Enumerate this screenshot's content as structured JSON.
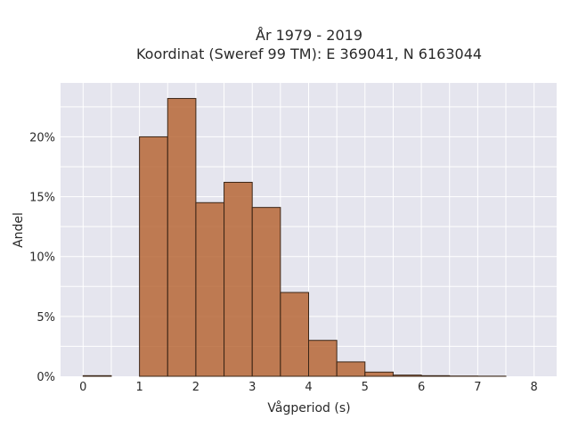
{
  "chart_data": {
    "type": "bar",
    "title_line1": "År 1979 - 2019",
    "title_line2": "Koordinat (Sweref 99 TM): E 369041, N 6163044",
    "xlabel": "Vågperiod (s)",
    "ylabel": "Andel",
    "xlim": [
      -0.4,
      8.4
    ],
    "ylim": [
      0,
      24.5
    ],
    "x_ticks": [
      0,
      1,
      2,
      3,
      4,
      5,
      6,
      7,
      8
    ],
    "y_ticks": [
      0,
      5,
      10,
      15,
      20
    ],
    "y_tick_labels": [
      "0%",
      "5%",
      "10%",
      "15%",
      "20%"
    ],
    "bin_width": 0.5,
    "bins": [
      {
        "start": 0.0,
        "value": 0.05
      },
      {
        "start": 0.5,
        "value": 0.0
      },
      {
        "start": 1.0,
        "value": 20.0
      },
      {
        "start": 1.5,
        "value": 23.2
      },
      {
        "start": 2.0,
        "value": 14.5
      },
      {
        "start": 2.5,
        "value": 16.2
      },
      {
        "start": 3.0,
        "value": 14.1
      },
      {
        "start": 3.5,
        "value": 7.0
      },
      {
        "start": 4.0,
        "value": 3.0
      },
      {
        "start": 4.5,
        "value": 1.2
      },
      {
        "start": 5.0,
        "value": 0.35
      },
      {
        "start": 5.5,
        "value": 0.1
      },
      {
        "start": 6.0,
        "value": 0.05
      },
      {
        "start": 6.5,
        "value": 0.02
      },
      {
        "start": 7.0,
        "value": 0.01
      }
    ],
    "grid": true,
    "background_color": "#e5e5ee",
    "bar_color": "#b5622f"
  }
}
